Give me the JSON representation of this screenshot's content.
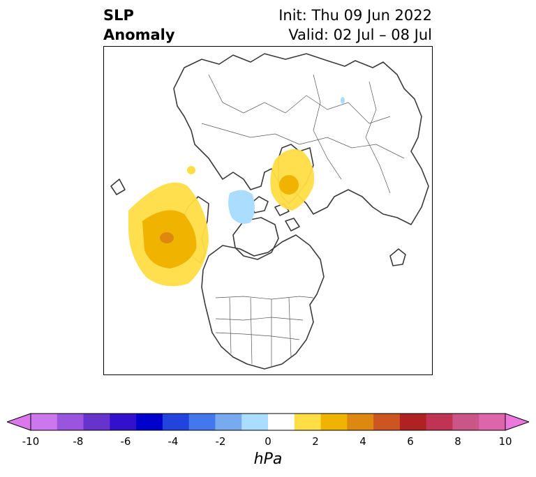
{
  "title": {
    "left_line1": "SLP",
    "left_line2": "Anomaly",
    "init": "Init: Thu 09 Jun 2022",
    "valid": "Valid: 02 Jul – 08 Jul"
  },
  "map": {
    "projection": "north-polar-stereographic",
    "anomalies": [
      {
        "region": "North Pacific / Gulf of Alaska",
        "sign": "positive",
        "peak_hPa": 4
      },
      {
        "region": "Barents-Kara Sea / Scandinavia",
        "sign": "positive",
        "peak_hPa": 3
      },
      {
        "region": "Beaufort / Arctic Ocean",
        "sign": "negative",
        "peak_hPa": -2
      },
      {
        "region": "Central Siberia",
        "sign": "negative",
        "peak_hPa": -2
      }
    ]
  },
  "colorbar": {
    "unit_label": "hPa",
    "ticks": [
      "-10",
      "-8",
      "-6",
      "-4",
      "-2",
      "0",
      "2",
      "4",
      "6",
      "8",
      "10"
    ],
    "under_color": "#dd77ee",
    "over_color": "#ee77dd",
    "colors": [
      "#cc77ee",
      "#9955dd",
      "#6633cc",
      "#3311cc",
      "#0000cc",
      "#2244dd",
      "#4477ee",
      "#77aaee",
      "#aaddff",
      "#ffffff",
      "#ffdd44",
      "#f0b400",
      "#dd8811",
      "#cc5522",
      "#b02222",
      "#c03355",
      "#cc5588",
      "#dd66aa"
    ]
  }
}
